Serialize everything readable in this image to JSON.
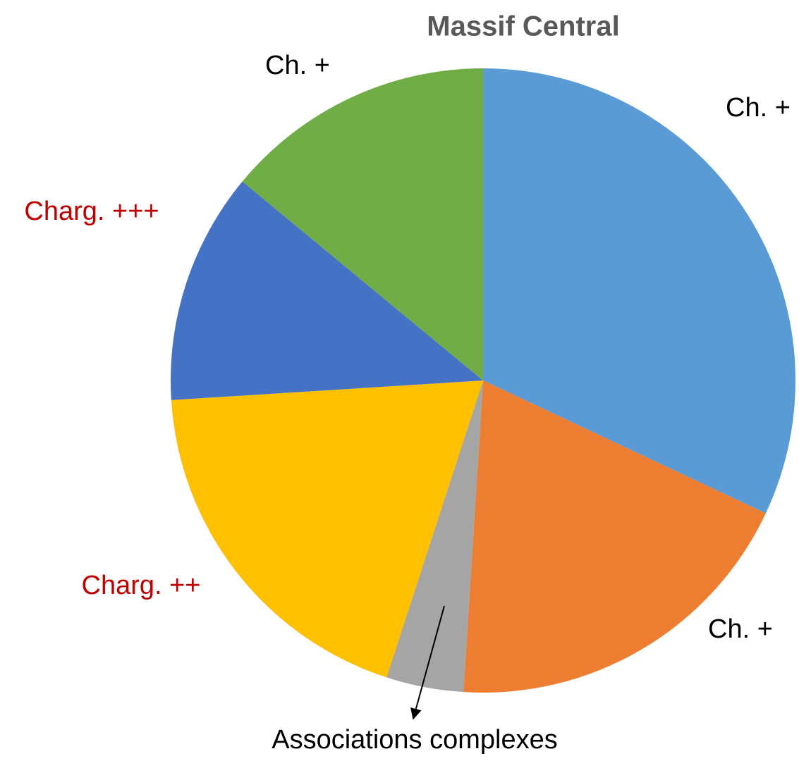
{
  "chart_data": {
    "type": "pie",
    "title": "Massif Central",
    "categories": [
      "Ch. +",
      "Ch. +",
      "Associations complexes",
      "Charg. ++",
      "Charg. +++",
      "Ch. +"
    ],
    "values": [
      32,
      19,
      4,
      19,
      12,
      14
    ],
    "colors": [
      "#5b9bd5",
      "#ed7d31",
      "#a5a5a5",
      "#ffc000",
      "#4472c4",
      "#70ad47"
    ],
    "label_colors": [
      "#000000",
      "#000000",
      "#000000",
      "#c00000",
      "#c00000",
      "#000000"
    ]
  }
}
